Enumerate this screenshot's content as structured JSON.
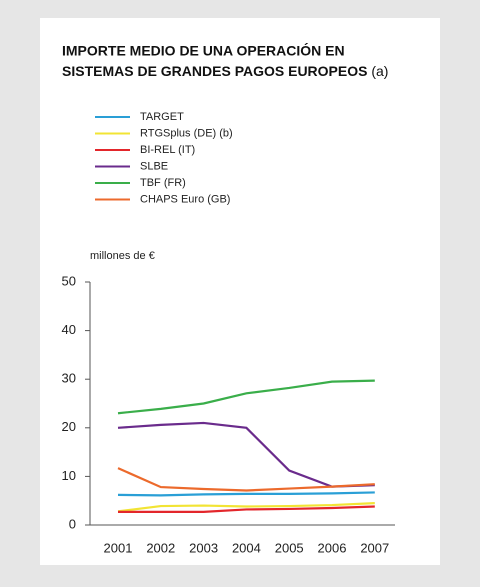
{
  "chart_data": {
    "type": "line",
    "title": [
      "IMPORTE MEDIO DE UNA OPERACIÓN EN",
      "SISTEMAS DE GRANDES PAGOS EUROPEOS"
    ],
    "title_note": "(a)",
    "ylabel": "millones de €",
    "categories": [
      "2001",
      "2002",
      "2003",
      "2004",
      "2005",
      "2006",
      "2007"
    ],
    "series": [
      {
        "name": "TARGET",
        "color": "#2a9fd6",
        "values": [
          6.2,
          6.1,
          6.3,
          6.4,
          6.4,
          6.5,
          6.7
        ]
      },
      {
        "name": "RTGSplus (DE) (b)",
        "color": "#f2e434",
        "values": [
          2.8,
          3.9,
          4.0,
          3.8,
          3.9,
          4.1,
          4.5
        ]
      },
      {
        "name": "BI-REL (IT)",
        "color": "#e3262b",
        "values": [
          2.7,
          2.7,
          2.7,
          3.2,
          3.3,
          3.5,
          3.8
        ]
      },
      {
        "name": "SLBE",
        "color": "#6a2b8c",
        "values": [
          20,
          20.6,
          21,
          20,
          11.2,
          7.9,
          8.2
        ]
      },
      {
        "name": "TBF (FR)",
        "color": "#3aae4a",
        "values": [
          23,
          23.9,
          25,
          27.1,
          28.2,
          29.5,
          29.7
        ]
      },
      {
        "name": "CHAPS Euro (GB)",
        "color": "#ec6a2c",
        "values": [
          11.7,
          7.8,
          7.4,
          7.1,
          7.5,
          7.9,
          8.4
        ]
      }
    ],
    "ylim": [
      0,
      50
    ],
    "yticks": [
      0,
      10,
      20,
      30,
      40,
      50
    ],
    "grid": false
  }
}
